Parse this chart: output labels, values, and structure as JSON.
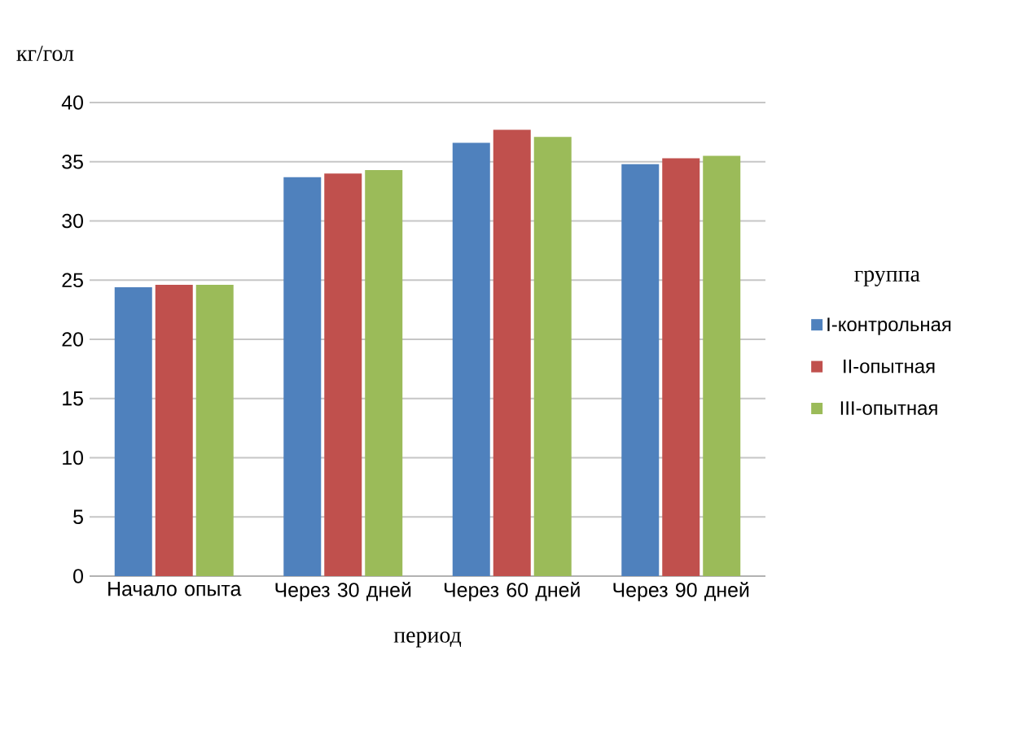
{
  "chart_data": {
    "type": "bar",
    "ylabel": "кг/гол",
    "xlabel": "период",
    "legend_title": "группа",
    "categories": [
      "Начало опыта",
      "Через 30 дней",
      "Через 60 дней",
      "Через 90 дней"
    ],
    "series": [
      {
        "name": "I-контрольная",
        "color": "#4f81bd",
        "values": [
          24.4,
          33.7,
          36.6,
          34.8
        ]
      },
      {
        "name": "II-опытная",
        "color": "#c0504d",
        "values": [
          24.6,
          34.0,
          37.7,
          35.3
        ]
      },
      {
        "name": "III-опытная",
        "color": "#9bbb59",
        "values": [
          24.6,
          34.3,
          37.1,
          35.5
        ]
      }
    ],
    "ylim": [
      0,
      40
    ],
    "yticks": [
      0,
      5,
      10,
      15,
      20,
      25,
      30,
      35,
      40
    ],
    "grid": "y",
    "legend": "right"
  }
}
